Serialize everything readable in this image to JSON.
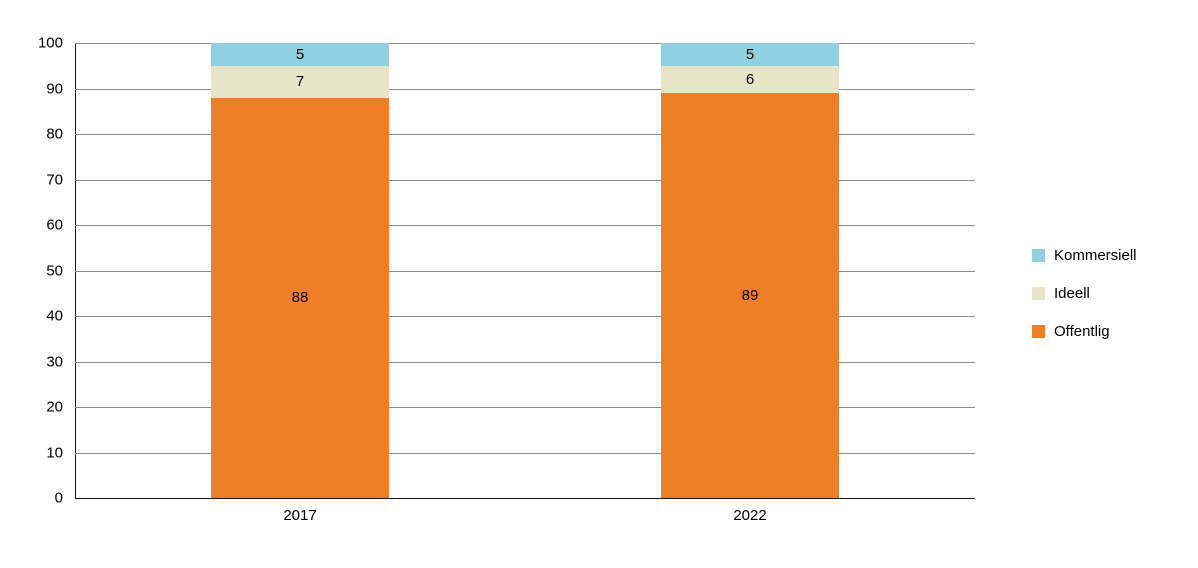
{
  "chart_data": {
    "type": "bar",
    "subtype": "stacked-column",
    "categories": [
      "2017",
      "2022"
    ],
    "series": [
      {
        "name": "Offentlig",
        "color": "#f07e26",
        "values": [
          88,
          89
        ]
      },
      {
        "name": "Ideell",
        "color": "#e8e4c8",
        "values": [
          7,
          6
        ]
      },
      {
        "name": "Kommersiell",
        "color": "#8fd1e0",
        "values": [
          5,
          5
        ]
      }
    ],
    "title": "",
    "xlabel": "",
    "ylabel": "",
    "ylim": [
      0,
      100
    ],
    "yticks": [
      0,
      10,
      20,
      30,
      40,
      50,
      60,
      70,
      80,
      90,
      100
    ],
    "grid": true,
    "legend_position": "right"
  },
  "legend": {
    "items": [
      {
        "label": "Kommersiell",
        "color": "#8fd1e0"
      },
      {
        "label": "Ideell",
        "color": "#e8e4c8"
      },
      {
        "label": "Offentlig",
        "color": "#f07e26"
      }
    ]
  },
  "colors": {
    "gridline": "#8c8c8c",
    "axis": "#1a1a1a",
    "background": "#ffffff"
  }
}
